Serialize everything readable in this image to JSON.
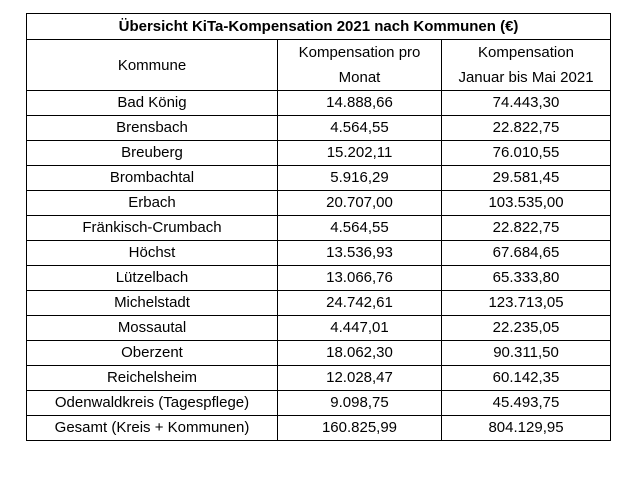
{
  "table": {
    "title": "Übersicht KiTa-Kompensation 2021 nach Kommunen (€)",
    "headers": {
      "kommune": "Kommune",
      "monat_line1": "Kompensation pro",
      "monat_line2": "Monat",
      "jan_mai_line1": "Kompensation",
      "jan_mai_line2": "Januar bis Mai 2021"
    },
    "rows": [
      {
        "kommune": "Bad König",
        "monat": "14.888,66",
        "jan_mai": "74.443,30"
      },
      {
        "kommune": "Brensbach",
        "monat": "4.564,55",
        "jan_mai": "22.822,75"
      },
      {
        "kommune": "Breuberg",
        "monat": "15.202,11",
        "jan_mai": "76.010,55"
      },
      {
        "kommune": "Brombachtal",
        "monat": "5.916,29",
        "jan_mai": "29.581,45"
      },
      {
        "kommune": "Erbach",
        "monat": "20.707,00",
        "jan_mai": "103.535,00"
      },
      {
        "kommune": "Fränkisch-Crumbach",
        "monat": "4.564,55",
        "jan_mai": "22.822,75"
      },
      {
        "kommune": "Höchst",
        "monat": "13.536,93",
        "jan_mai": "67.684,65"
      },
      {
        "kommune": "Lützelbach",
        "monat": "13.066,76",
        "jan_mai": "65.333,80"
      },
      {
        "kommune": "Michelstadt",
        "monat": "24.742,61",
        "jan_mai": "123.713,05"
      },
      {
        "kommune": "Mossautal",
        "monat": "4.447,01",
        "jan_mai": "22.235,05"
      },
      {
        "kommune": "Oberzent",
        "monat": "18.062,30",
        "jan_mai": "90.311,50"
      },
      {
        "kommune": "Reichelsheim",
        "monat": "12.028,47",
        "jan_mai": "60.142,35"
      },
      {
        "kommune": "Odenwaldkreis (Tagespflege)",
        "monat": "9.098,75",
        "jan_mai": "45.493,75"
      },
      {
        "kommune": "Gesamt (Kreis + Kommunen)",
        "monat": "160.825,99",
        "jan_mai": "804.129,95"
      }
    ]
  }
}
